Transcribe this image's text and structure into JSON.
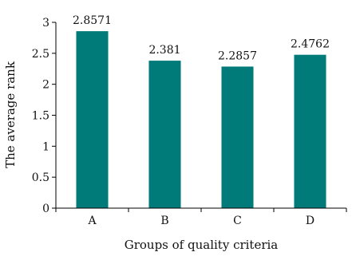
{
  "chart_data": {
    "type": "bar",
    "categories": [
      "A",
      "B",
      "C",
      "D"
    ],
    "values": [
      2.8571,
      2.381,
      2.2857,
      2.4762
    ],
    "data_labels": [
      "2.8571",
      "2.381",
      "2.2857",
      "2.4762"
    ],
    "title": "",
    "xlabel": "Groups of quality criteria",
    "ylabel": "The average rank",
    "ylim": [
      0,
      3
    ],
    "yticks": [
      "0",
      "0.5",
      "1",
      "1.5",
      "2",
      "2.5",
      "3"
    ],
    "grid": false,
    "legend": "none",
    "bar_color": "#007b7a"
  }
}
